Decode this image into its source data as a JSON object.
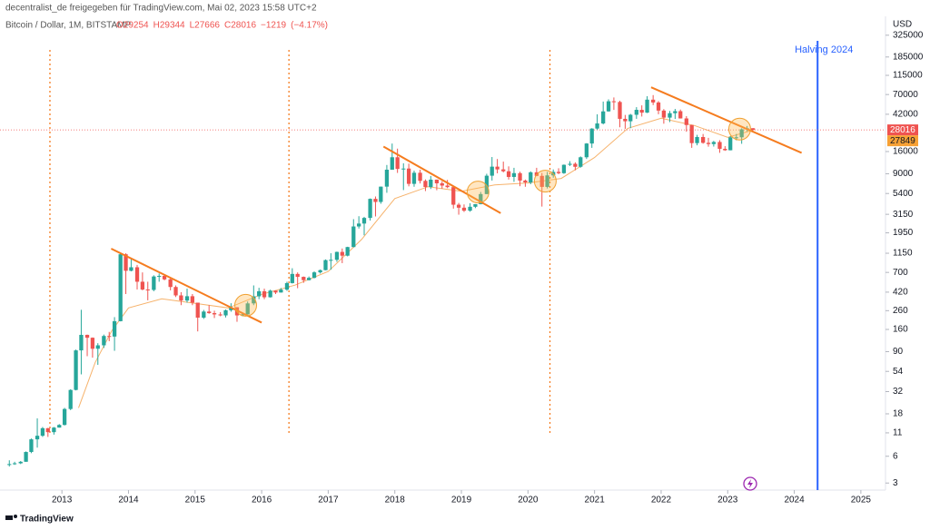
{
  "header": {
    "line1": "decentralist_de freigegeben für TradingView.com, Mai 02, 2023 15:58 UTC+2",
    "brand": "TradingView"
  },
  "chart_data": {
    "type": "candlestick",
    "title": "Bitcoin / Dollar, 1M, BITSTAMP",
    "legend_values": [
      {
        "value": 29254,
        "label": "O29254"
      },
      {
        "value": 29344,
        "label": "H29344"
      },
      {
        "value": 27666,
        "label": "L27666"
      },
      {
        "value": 28016,
        "label": "C28016"
      },
      {
        "value": -1219,
        "label": "−1219"
      },
      {
        "value": -4.17,
        "label": "(−4.17%)"
      }
    ],
    "y_axis_label": "USD",
    "log_scale": true,
    "grid": false,
    "up_color": "#26a69a",
    "down_color": "#ef5350",
    "xlim": [
      2012.07,
      2025.37
    ],
    "xticks": [
      2013,
      2014,
      2015,
      2016,
      2017,
      2018,
      2019,
      2020,
      2021,
      2022,
      2023,
      2024,
      2025
    ],
    "ylim": [
      2.5,
      530000
    ],
    "yticks": [
      3,
      6,
      11,
      18,
      32,
      54,
      90,
      160,
      260,
      420,
      700,
      1150,
      1950,
      3150,
      5400,
      9000,
      16000,
      42000,
      70000,
      115000,
      185000,
      325000
    ],
    "candles": [
      {
        "x": 2012.21,
        "o": 4.8,
        "h": 5.4,
        "l": 4.6,
        "c": 4.9
      },
      {
        "x": 2012.29,
        "o": 4.9,
        "h": 5.2,
        "l": 4.8,
        "c": 5.0
      },
      {
        "x": 2012.38,
        "o": 5.0,
        "h": 5.3,
        "l": 4.9,
        "c": 5.2
      },
      {
        "x": 2012.46,
        "o": 5.2,
        "h": 6.8,
        "l": 5.2,
        "c": 6.7
      },
      {
        "x": 2012.54,
        "o": 6.7,
        "h": 9.5,
        "l": 6.5,
        "c": 9.3
      },
      {
        "x": 2012.63,
        "o": 9.3,
        "h": 16,
        "l": 7.5,
        "c": 10.2
      },
      {
        "x": 2012.71,
        "o": 10.2,
        "h": 12.8,
        "l": 9.9,
        "c": 12.4
      },
      {
        "x": 2012.79,
        "o": 12.4,
        "h": 12.5,
        "l": 9.9,
        "c": 11.2
      },
      {
        "x": 2012.88,
        "o": 11.2,
        "h": 12.8,
        "l": 10.5,
        "c": 12.6
      },
      {
        "x": 2012.96,
        "o": 12.6,
        "h": 13.8,
        "l": 12.6,
        "c": 13.5
      },
      {
        "x": 2013.04,
        "o": 13.5,
        "h": 21,
        "l": 13.3,
        "c": 20.4
      },
      {
        "x": 2013.13,
        "o": 20.4,
        "h": 34,
        "l": 19.8,
        "c": 33.4
      },
      {
        "x": 2013.21,
        "o": 33.4,
        "h": 95,
        "l": 33,
        "c": 93
      },
      {
        "x": 2013.29,
        "o": 93,
        "h": 266,
        "l": 50,
        "c": 139
      },
      {
        "x": 2013.38,
        "o": 139,
        "h": 140,
        "l": 80,
        "c": 129
      },
      {
        "x": 2013.46,
        "o": 129,
        "h": 130,
        "l": 77,
        "c": 97
      },
      {
        "x": 2013.54,
        "o": 97,
        "h": 112,
        "l": 64,
        "c": 106
      },
      {
        "x": 2013.63,
        "o": 106,
        "h": 140,
        "l": 99,
        "c": 135
      },
      {
        "x": 2013.71,
        "o": 135,
        "h": 150,
        "l": 118,
        "c": 133
      },
      {
        "x": 2013.79,
        "o": 133,
        "h": 220,
        "l": 92,
        "c": 198
      },
      {
        "x": 2013.88,
        "o": 198,
        "h": 1163,
        "l": 197,
        "c": 1120
      },
      {
        "x": 2013.96,
        "o": 1120,
        "h": 1150,
        "l": 400,
        "c": 730
      },
      {
        "x": 2014.04,
        "o": 730,
        "h": 1000,
        "l": 720,
        "c": 800
      },
      {
        "x": 2014.13,
        "o": 800,
        "h": 850,
        "l": 450,
        "c": 550
      },
      {
        "x": 2014.21,
        "o": 550,
        "h": 700,
        "l": 440,
        "c": 450
      },
      {
        "x": 2014.29,
        "o": 450,
        "h": 550,
        "l": 340,
        "c": 445
      },
      {
        "x": 2014.38,
        "o": 445,
        "h": 650,
        "l": 430,
        "c": 630
      },
      {
        "x": 2014.46,
        "o": 630,
        "h": 680,
        "l": 550,
        "c": 640
      },
      {
        "x": 2014.54,
        "o": 640,
        "h": 660,
        "l": 570,
        "c": 585
      },
      {
        "x": 2014.63,
        "o": 585,
        "h": 600,
        "l": 440,
        "c": 480
      },
      {
        "x": 2014.71,
        "o": 480,
        "h": 500,
        "l": 370,
        "c": 386
      },
      {
        "x": 2014.79,
        "o": 386,
        "h": 420,
        "l": 300,
        "c": 338
      },
      {
        "x": 2014.88,
        "o": 338,
        "h": 460,
        "l": 320,
        "c": 378
      },
      {
        "x": 2014.96,
        "o": 378,
        "h": 400,
        "l": 300,
        "c": 320
      },
      {
        "x": 2015.04,
        "o": 320,
        "h": 320,
        "l": 152,
        "c": 217
      },
      {
        "x": 2015.13,
        "o": 217,
        "h": 265,
        "l": 210,
        "c": 254
      },
      {
        "x": 2015.21,
        "o": 254,
        "h": 300,
        "l": 240,
        "c": 244
      },
      {
        "x": 2015.29,
        "o": 244,
        "h": 260,
        "l": 215,
        "c": 236
      },
      {
        "x": 2015.38,
        "o": 236,
        "h": 250,
        "l": 225,
        "c": 230
      },
      {
        "x": 2015.46,
        "o": 230,
        "h": 268,
        "l": 218,
        "c": 263
      },
      {
        "x": 2015.54,
        "o": 263,
        "h": 315,
        "l": 253,
        "c": 284
      },
      {
        "x": 2015.63,
        "o": 284,
        "h": 285,
        "l": 195,
        "c": 230
      },
      {
        "x": 2015.71,
        "o": 230,
        "h": 243,
        "l": 225,
        "c": 236
      },
      {
        "x": 2015.79,
        "o": 236,
        "h": 330,
        "l": 235,
        "c": 314
      },
      {
        "x": 2015.88,
        "o": 314,
        "h": 500,
        "l": 300,
        "c": 377
      },
      {
        "x": 2015.96,
        "o": 377,
        "h": 470,
        "l": 350,
        "c": 430
      },
      {
        "x": 2016.04,
        "o": 430,
        "h": 460,
        "l": 350,
        "c": 368
      },
      {
        "x": 2016.13,
        "o": 368,
        "h": 448,
        "l": 365,
        "c": 437
      },
      {
        "x": 2016.21,
        "o": 437,
        "h": 440,
        "l": 400,
        "c": 416
      },
      {
        "x": 2016.29,
        "o": 416,
        "h": 468,
        "l": 415,
        "c": 448
      },
      {
        "x": 2016.38,
        "o": 448,
        "h": 550,
        "l": 435,
        "c": 531
      },
      {
        "x": 2016.46,
        "o": 531,
        "h": 780,
        "l": 525,
        "c": 673
      },
      {
        "x": 2016.54,
        "o": 673,
        "h": 700,
        "l": 465,
        "c": 624
      },
      {
        "x": 2016.63,
        "o": 624,
        "h": 630,
        "l": 535,
        "c": 573
      },
      {
        "x": 2016.71,
        "o": 573,
        "h": 630,
        "l": 570,
        "c": 608
      },
      {
        "x": 2016.79,
        "o": 608,
        "h": 720,
        "l": 600,
        "c": 701
      },
      {
        "x": 2016.88,
        "o": 701,
        "h": 755,
        "l": 680,
        "c": 742
      },
      {
        "x": 2016.96,
        "o": 742,
        "h": 980,
        "l": 740,
        "c": 963
      },
      {
        "x": 2017.04,
        "o": 963,
        "h": 1150,
        "l": 750,
        "c": 970
      },
      {
        "x": 2017.13,
        "o": 970,
        "h": 1200,
        "l": 920,
        "c": 1190
      },
      {
        "x": 2017.21,
        "o": 1190,
        "h": 1300,
        "l": 890,
        "c": 1080
      },
      {
        "x": 2017.29,
        "o": 1080,
        "h": 1360,
        "l": 1060,
        "c": 1350
      },
      {
        "x": 2017.38,
        "o": 1350,
        "h": 2780,
        "l": 1340,
        "c": 2300
      },
      {
        "x": 2017.46,
        "o": 2300,
        "h": 3000,
        "l": 2180,
        "c": 2480
      },
      {
        "x": 2017.54,
        "o": 2480,
        "h": 2950,
        "l": 1830,
        "c": 2870
      },
      {
        "x": 2017.63,
        "o": 2870,
        "h": 4750,
        "l": 2680,
        "c": 4700
      },
      {
        "x": 2017.71,
        "o": 4700,
        "h": 5000,
        "l": 2980,
        "c": 4340
      },
      {
        "x": 2017.79,
        "o": 4340,
        "h": 6470,
        "l": 4140,
        "c": 6450
      },
      {
        "x": 2017.88,
        "o": 6450,
        "h": 11300,
        "l": 5500,
        "c": 10000
      },
      {
        "x": 2017.96,
        "o": 10000,
        "h": 19670,
        "l": 10000,
        "c": 13800
      },
      {
        "x": 2018.04,
        "o": 13800,
        "h": 17250,
        "l": 9200,
        "c": 10200
      },
      {
        "x": 2018.13,
        "o": 10200,
        "h": 11800,
        "l": 5900,
        "c": 10300
      },
      {
        "x": 2018.21,
        "o": 10300,
        "h": 11700,
        "l": 6500,
        "c": 6930
      },
      {
        "x": 2018.29,
        "o": 6930,
        "h": 9760,
        "l": 6430,
        "c": 9240
      },
      {
        "x": 2018.38,
        "o": 9240,
        "h": 10000,
        "l": 7000,
        "c": 7490
      },
      {
        "x": 2018.46,
        "o": 7490,
        "h": 7780,
        "l": 5750,
        "c": 6390
      },
      {
        "x": 2018.54,
        "o": 6390,
        "h": 8500,
        "l": 6070,
        "c": 7730
      },
      {
        "x": 2018.63,
        "o": 7730,
        "h": 7750,
        "l": 5880,
        "c": 7030
      },
      {
        "x": 2018.71,
        "o": 7030,
        "h": 7410,
        "l": 6100,
        "c": 6630
      },
      {
        "x": 2018.79,
        "o": 6630,
        "h": 7680,
        "l": 6200,
        "c": 6370
      },
      {
        "x": 2018.88,
        "o": 6370,
        "h": 6560,
        "l": 3650,
        "c": 4040
      },
      {
        "x": 2018.96,
        "o": 4040,
        "h": 4230,
        "l": 3120,
        "c": 3740
      },
      {
        "x": 2019.04,
        "o": 3740,
        "h": 4070,
        "l": 3350,
        "c": 3460
      },
      {
        "x": 2019.13,
        "o": 3460,
        "h": 4200,
        "l": 3370,
        "c": 3830
      },
      {
        "x": 2019.21,
        "o": 3830,
        "h": 4100,
        "l": 3700,
        "c": 4100
      },
      {
        "x": 2019.29,
        "o": 4100,
        "h": 5620,
        "l": 4080,
        "c": 5320
      },
      {
        "x": 2019.38,
        "o": 5320,
        "h": 9000,
        "l": 5320,
        "c": 8560
      },
      {
        "x": 2019.46,
        "o": 8560,
        "h": 13880,
        "l": 7550,
        "c": 10820
      },
      {
        "x": 2019.54,
        "o": 10820,
        "h": 13190,
        "l": 9100,
        "c": 10080
      },
      {
        "x": 2019.63,
        "o": 10080,
        "h": 12330,
        "l": 9330,
        "c": 9600
      },
      {
        "x": 2019.71,
        "o": 9600,
        "h": 10900,
        "l": 7750,
        "c": 8290
      },
      {
        "x": 2019.79,
        "o": 8290,
        "h": 10500,
        "l": 7300,
        "c": 9150
      },
      {
        "x": 2019.88,
        "o": 9150,
        "h": 9500,
        "l": 6520,
        "c": 7550
      },
      {
        "x": 2019.96,
        "o": 7550,
        "h": 7750,
        "l": 6430,
        "c": 7190
      },
      {
        "x": 2020.04,
        "o": 7190,
        "h": 9580,
        "l": 6870,
        "c": 9350
      },
      {
        "x": 2020.13,
        "o": 9350,
        "h": 10500,
        "l": 8450,
        "c": 8520
      },
      {
        "x": 2020.21,
        "o": 8520,
        "h": 9200,
        "l": 3850,
        "c": 6410
      },
      {
        "x": 2020.29,
        "o": 6410,
        "h": 9450,
        "l": 6150,
        "c": 8630
      },
      {
        "x": 2020.38,
        "o": 8630,
        "h": 10070,
        "l": 8120,
        "c": 9450
      },
      {
        "x": 2020.46,
        "o": 9450,
        "h": 10380,
        "l": 8900,
        "c": 9140
      },
      {
        "x": 2020.54,
        "o": 9140,
        "h": 11450,
        "l": 8980,
        "c": 11350
      },
      {
        "x": 2020.63,
        "o": 11350,
        "h": 12470,
        "l": 11000,
        "c": 11650
      },
      {
        "x": 2020.71,
        "o": 11650,
        "h": 12100,
        "l": 9850,
        "c": 10780
      },
      {
        "x": 2020.79,
        "o": 10780,
        "h": 14100,
        "l": 10530,
        "c": 13800
      },
      {
        "x": 2020.88,
        "o": 13800,
        "h": 19900,
        "l": 13200,
        "c": 19700
      },
      {
        "x": 2020.96,
        "o": 19700,
        "h": 29300,
        "l": 17600,
        "c": 28990
      },
      {
        "x": 2021.04,
        "o": 28990,
        "h": 41950,
        "l": 28130,
        "c": 33110
      },
      {
        "x": 2021.13,
        "o": 33110,
        "h": 58350,
        "l": 32300,
        "c": 45240
      },
      {
        "x": 2021.21,
        "o": 45240,
        "h": 61790,
        "l": 44950,
        "c": 58800
      },
      {
        "x": 2021.29,
        "o": 58800,
        "h": 64900,
        "l": 47000,
        "c": 57720
      },
      {
        "x": 2021.38,
        "o": 57720,
        "h": 59600,
        "l": 30000,
        "c": 37300
      },
      {
        "x": 2021.46,
        "o": 37300,
        "h": 41300,
        "l": 28800,
        "c": 35040
      },
      {
        "x": 2021.54,
        "o": 35040,
        "h": 42400,
        "l": 29300,
        "c": 41460
      },
      {
        "x": 2021.63,
        "o": 41460,
        "h": 50500,
        "l": 37330,
        "c": 47100
      },
      {
        "x": 2021.71,
        "o": 47100,
        "h": 52900,
        "l": 39600,
        "c": 43820
      },
      {
        "x": 2021.79,
        "o": 43820,
        "h": 67000,
        "l": 43300,
        "c": 61300
      },
      {
        "x": 2021.88,
        "o": 61300,
        "h": 69000,
        "l": 53300,
        "c": 57000
      },
      {
        "x": 2021.96,
        "o": 57000,
        "h": 59100,
        "l": 42000,
        "c": 46200
      },
      {
        "x": 2022.04,
        "o": 46200,
        "h": 47990,
        "l": 32900,
        "c": 38500
      },
      {
        "x": 2022.13,
        "o": 38500,
        "h": 45800,
        "l": 34300,
        "c": 43200
      },
      {
        "x": 2022.21,
        "o": 43200,
        "h": 48200,
        "l": 37200,
        "c": 45500
      },
      {
        "x": 2022.29,
        "o": 45500,
        "h": 47450,
        "l": 37600,
        "c": 37700
      },
      {
        "x": 2022.38,
        "o": 37700,
        "h": 40000,
        "l": 26700,
        "c": 31800
      },
      {
        "x": 2022.46,
        "o": 31800,
        "h": 31950,
        "l": 17600,
        "c": 19900
      },
      {
        "x": 2022.54,
        "o": 19900,
        "h": 24650,
        "l": 18800,
        "c": 23300
      },
      {
        "x": 2022.63,
        "o": 23300,
        "h": 25200,
        "l": 19600,
        "c": 20050
      },
      {
        "x": 2022.71,
        "o": 20050,
        "h": 22800,
        "l": 18150,
        "c": 19420
      },
      {
        "x": 2022.79,
        "o": 19420,
        "h": 21100,
        "l": 18200,
        "c": 20490
      },
      {
        "x": 2022.88,
        "o": 20490,
        "h": 21480,
        "l": 15480,
        "c": 17170
      },
      {
        "x": 2022.96,
        "o": 17170,
        "h": 18380,
        "l": 16300,
        "c": 16540
      },
      {
        "x": 2023.04,
        "o": 16540,
        "h": 23960,
        "l": 16500,
        "c": 23130
      },
      {
        "x": 2023.13,
        "o": 23130,
        "h": 25250,
        "l": 21400,
        "c": 23140
      },
      {
        "x": 2023.21,
        "o": 23140,
        "h": 29200,
        "l": 19550,
        "c": 28480
      },
      {
        "x": 2023.29,
        "o": 28480,
        "h": 31000,
        "l": 26950,
        "c": 29254
      },
      {
        "x": 2023.38,
        "o": 29254,
        "h": 29344,
        "l": 27666,
        "c": 28016
      }
    ],
    "ma": {
      "color": "#f6b26b",
      "x": [
        2013.25,
        2013.5,
        2013.75,
        2014.0,
        2014.5,
        2015.0,
        2015.5,
        2016.0,
        2016.5,
        2017.0,
        2017.5,
        2018.0,
        2018.5,
        2019.0,
        2019.5,
        2020.0,
        2020.5,
        2021.0,
        2021.5,
        2022.0,
        2022.5,
        2023.0,
        2023.38
      ],
      "values": [
        21,
        68,
        155,
        279,
        353,
        314,
        279,
        397,
        503,
        718,
        1640,
        4740,
        6440,
        5730,
        6760,
        7100,
        7980,
        13700,
        29200,
        37900,
        31400,
        23100,
        27849
      ]
    },
    "trendlines": {
      "color": "#f57c1f",
      "lines": [
        {
          "x": [
            2013.74,
            2016.0
          ],
          "y": [
            1294,
            191
          ]
        },
        {
          "x": [
            2017.83,
            2019.59
          ],
          "y": [
            18200,
            3250
          ]
        },
        {
          "x": [
            2021.85,
            2024.11
          ],
          "y": [
            84500,
            15450
          ]
        }
      ]
    },
    "highlights": [
      {
        "x": 2015.76,
        "y": 299
      },
      {
        "x": 2019.25,
        "y": 5600
      },
      {
        "x": 2020.26,
        "y": 7430
      },
      {
        "x": 2023.18,
        "y": 28600
      }
    ],
    "halving_lines": [
      2012.82,
      2016.41,
      2020.33
    ],
    "halving_2024": {
      "x": 2024.35,
      "label": "Halving 2024",
      "color": "#2962ff"
    }
  }
}
